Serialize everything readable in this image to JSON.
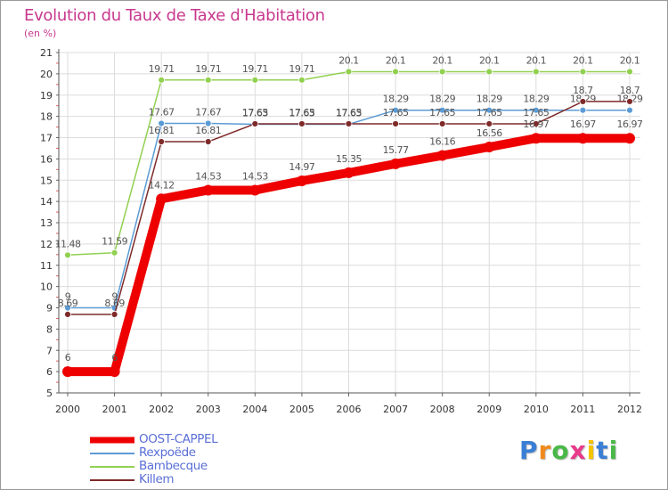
{
  "chart_data": {
    "type": "line",
    "title": "Evolution du Taux de Taxe d'Habitation",
    "ylabel": "(en %)",
    "xlabel": "",
    "x": [
      "2000",
      "2001",
      "2002",
      "2003",
      "2004",
      "2005",
      "2006",
      "2007",
      "2008",
      "2009",
      "2010",
      "2011",
      "2012"
    ],
    "ylim": [
      5,
      21
    ],
    "yticks": [
      5,
      6,
      7,
      8,
      9,
      10,
      11,
      12,
      13,
      14,
      15,
      16,
      17,
      18,
      19,
      20,
      21
    ],
    "grid": true,
    "legend_position": "bottom-left",
    "series": [
      {
        "name": "OOST-CAPPEL",
        "color": "#ee0000",
        "values": [
          6,
          6,
          14.12,
          14.53,
          14.53,
          14.97,
          15.35,
          15.77,
          16.16,
          16.56,
          16.97,
          16.97,
          16.97
        ],
        "labels": [
          "6",
          "6",
          "14.12",
          "14.53",
          "14.53",
          "14.97",
          "15.35",
          "15.77",
          "16.16",
          "16.56",
          "16.97",
          "16.97",
          "16.97"
        ]
      },
      {
        "name": "Rexpoëde",
        "color": "#5b9bd5",
        "values": [
          9,
          9,
          17.67,
          17.67,
          17.63,
          17.63,
          17.63,
          18.29,
          18.29,
          18.29,
          18.29,
          18.29,
          18.29
        ],
        "labels": [
          "9",
          "9",
          "17.67",
          "17.67",
          "17.63",
          "17.63",
          "17.63",
          "18.29",
          "18.29",
          "18.29",
          "18.29",
          "18.29",
          "18.29"
        ]
      },
      {
        "name": "Bambecque",
        "color": "#92d050",
        "values": [
          11.48,
          11.59,
          19.71,
          19.71,
          19.71,
          19.71,
          20.1,
          20.1,
          20.1,
          20.1,
          20.1,
          20.1,
          20.1
        ],
        "labels": [
          "11.48",
          "11.59",
          "19.71",
          "19.71",
          "19.71",
          "19.71",
          "20.1",
          "20.1",
          "20.1",
          "20.1",
          "20.1",
          "20.1",
          "20.1"
        ]
      },
      {
        "name": "Killem",
        "color": "#7f2a2a",
        "values": [
          8.69,
          8.69,
          16.81,
          16.81,
          17.65,
          17.65,
          17.65,
          17.65,
          17.65,
          17.65,
          17.65,
          18.7,
          18.7
        ],
        "labels": [
          "8.69",
          "8.69",
          "16.81",
          "16.81",
          "17.65",
          "17.65",
          "17.65",
          "17.65",
          "17.65",
          "17.65",
          "17.65",
          "18.7",
          "18.7"
        ]
      }
    ]
  },
  "brand": {
    "letters": [
      "P",
      "r",
      "o",
      "x",
      "i",
      "t",
      "i"
    ],
    "colors": [
      "#3a7fd5",
      "#f08a1c",
      "#49b848",
      "#e83a8a",
      "#f5c400",
      "#3a7fd5",
      "#49b848"
    ]
  }
}
